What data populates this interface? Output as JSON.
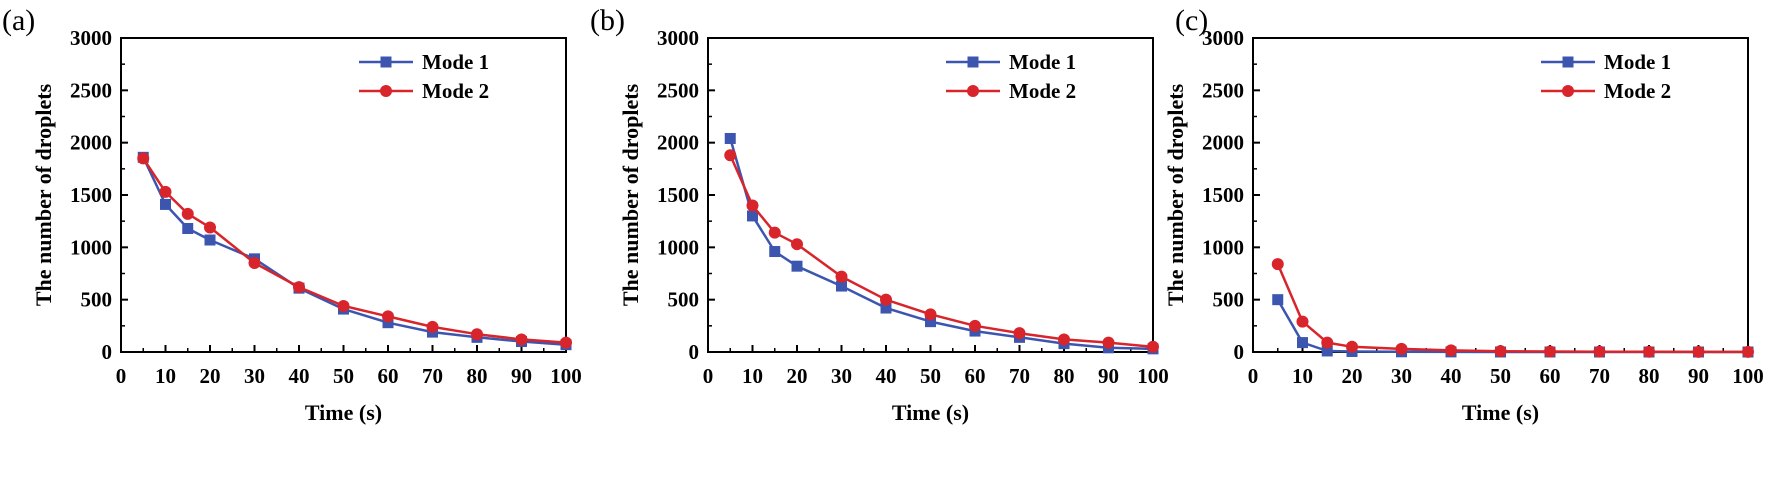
{
  "figure": {
    "colors": {
      "mode1": "#3c56b0",
      "mode2": "#d8242b",
      "axis": "#000000"
    },
    "markers": {
      "mode1": "square",
      "mode2": "circle"
    }
  },
  "chart_data": [
    {
      "type": "line",
      "panel_label": "(a)",
      "xlabel": "Time (s)",
      "ylabel": "The number of droplets",
      "xlim": [
        0,
        100
      ],
      "ylim": [
        0,
        3000
      ],
      "xticks": [
        0,
        10,
        20,
        30,
        40,
        50,
        60,
        70,
        80,
        90,
        100
      ],
      "yticks": [
        0,
        500,
        1000,
        1500,
        2000,
        2500,
        3000
      ],
      "grid": false,
      "legend": "top-right",
      "series": [
        {
          "name": "Mode 1",
          "x": [
            5,
            10,
            15,
            20,
            30,
            40,
            50,
            60,
            70,
            80,
            90,
            100
          ],
          "y": [
            1860,
            1410,
            1180,
            1070,
            890,
            610,
            410,
            280,
            190,
            140,
            100,
            70
          ]
        },
        {
          "name": "Mode 2",
          "x": [
            5,
            10,
            15,
            20,
            30,
            40,
            50,
            60,
            70,
            80,
            90,
            100
          ],
          "y": [
            1850,
            1530,
            1320,
            1190,
            850,
            620,
            440,
            340,
            240,
            170,
            120,
            90
          ]
        }
      ]
    },
    {
      "type": "line",
      "panel_label": "(b)",
      "xlabel": "Time (s)",
      "ylabel": "The number of droplets",
      "xlim": [
        0,
        100
      ],
      "ylim": [
        0,
        3000
      ],
      "xticks": [
        0,
        10,
        20,
        30,
        40,
        50,
        60,
        70,
        80,
        90,
        100
      ],
      "yticks": [
        0,
        500,
        1000,
        1500,
        2000,
        2500,
        3000
      ],
      "grid": false,
      "legend": "top-right",
      "series": [
        {
          "name": "Mode 1",
          "x": [
            5,
            10,
            15,
            20,
            30,
            40,
            50,
            60,
            70,
            80,
            90,
            100
          ],
          "y": [
            2040,
            1300,
            960,
            820,
            630,
            420,
            290,
            200,
            140,
            80,
            40,
            30
          ]
        },
        {
          "name": "Mode 2",
          "x": [
            5,
            10,
            15,
            20,
            30,
            40,
            50,
            60,
            70,
            80,
            90,
            100
          ],
          "y": [
            1880,
            1400,
            1140,
            1030,
            720,
            500,
            360,
            250,
            180,
            120,
            90,
            50
          ]
        }
      ]
    },
    {
      "type": "line",
      "panel_label": "(c)",
      "xlabel": "Time (s)",
      "ylabel": "The number of droplets",
      "xlim": [
        0,
        100
      ],
      "ylim": [
        0,
        3000
      ],
      "xticks": [
        0,
        10,
        20,
        30,
        40,
        50,
        60,
        70,
        80,
        90,
        100
      ],
      "yticks": [
        0,
        500,
        1000,
        1500,
        2000,
        2500,
        3000
      ],
      "grid": false,
      "legend": "top-right",
      "series": [
        {
          "name": "Mode 1",
          "x": [
            5,
            10,
            15,
            20,
            30,
            40,
            50,
            60,
            70,
            80,
            90,
            100
          ],
          "y": [
            500,
            90,
            10,
            5,
            2,
            1,
            0,
            0,
            0,
            0,
            0,
            0
          ]
        },
        {
          "name": "Mode 2",
          "x": [
            5,
            10,
            15,
            20,
            30,
            40,
            50,
            60,
            70,
            80,
            90,
            100
          ],
          "y": [
            840,
            290,
            90,
            50,
            30,
            15,
            8,
            5,
            3,
            2,
            1,
            1
          ]
        }
      ]
    }
  ]
}
